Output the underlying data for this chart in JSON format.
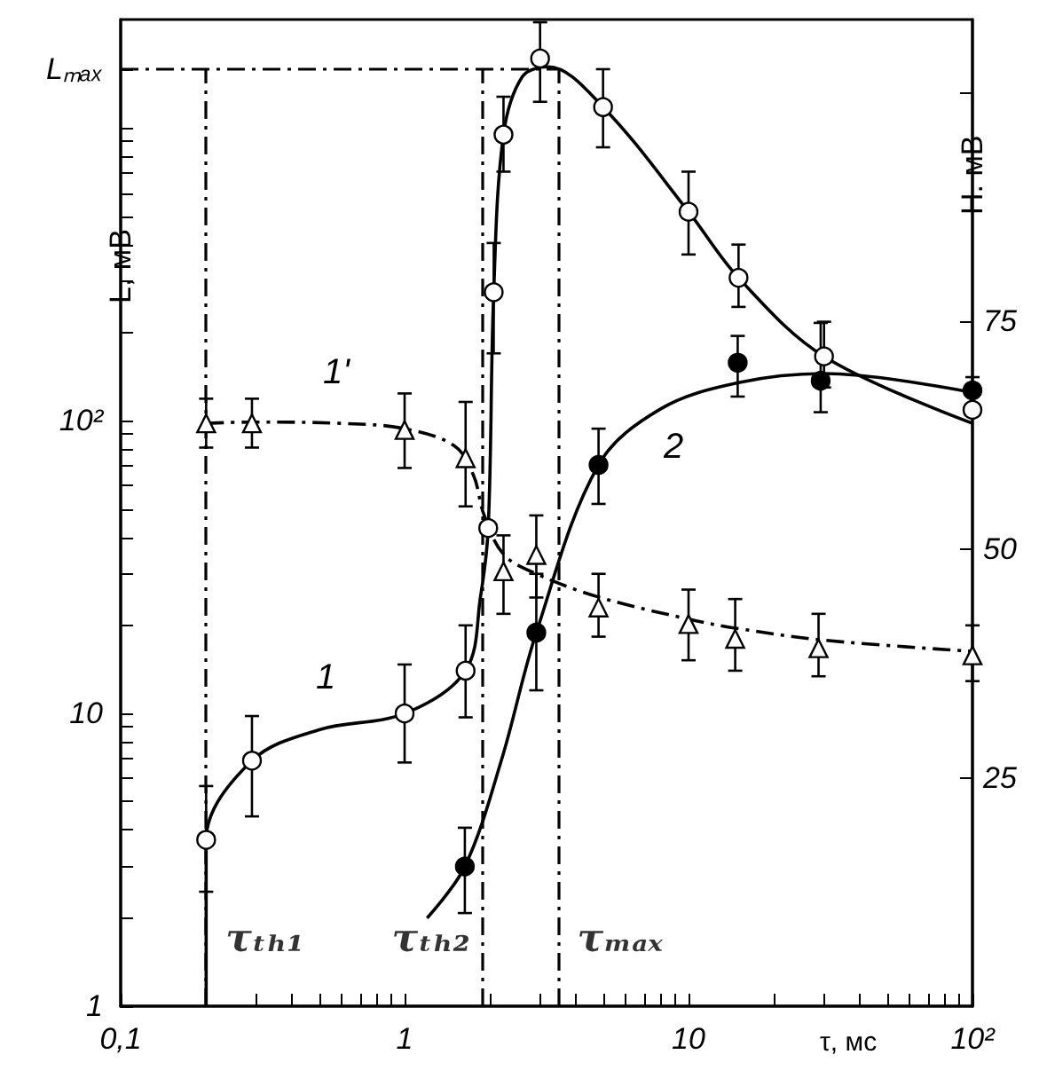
{
  "chart_data": {
    "type": "scatter",
    "xlabel": "τ, мс",
    "ylabel": "L, мВ",
    "y2label": "H. мВ",
    "log": "xy",
    "xlim": [
      0.1,
      100
    ],
    "ylim": [
      1,
      2350
    ],
    "y2lim": [
      0,
      108
    ],
    "xticks": [
      {
        "value": 0.1,
        "label": "0,1"
      },
      {
        "value": 0.2,
        "label": null
      },
      {
        "value": 0.3,
        "label": null
      },
      {
        "value": 0.4,
        "label": null
      },
      {
        "value": 0.5,
        "label": null
      },
      {
        "value": 0.6,
        "label": null
      },
      {
        "value": 0.7,
        "label": null
      },
      {
        "value": 0.8,
        "label": null
      },
      {
        "value": 0.9,
        "label": null
      },
      1,
      {
        "value": 2,
        "label": null
      },
      {
        "value": 3,
        "label": null
      },
      {
        "value": 4,
        "label": null
      },
      {
        "value": 5,
        "label": null
      },
      {
        "value": 6,
        "label": null
      },
      {
        "value": 7,
        "label": null
      },
      {
        "value": 8,
        "label": null
      },
      {
        "value": 9,
        "label": null
      },
      10,
      {
        "value": 20,
        "label": null
      },
      {
        "value": 30,
        "label": null
      },
      {
        "value": 40,
        "label": null
      },
      {
        "value": 50,
        "label": null
      },
      {
        "value": 60,
        "label": null
      },
      {
        "value": 70,
        "label": null
      },
      {
        "value": 80,
        "label": null
      },
      {
        "value": 90,
        "label": null
      },
      {
        "value": 100,
        "label": "10²"
      }
    ],
    "yticks": [
      1,
      {
        "value": 2,
        "label": null
      },
      {
        "value": 3,
        "label": null
      },
      {
        "value": 4,
        "label": null
      },
      {
        "value": 5,
        "label": null
      },
      {
        "value": 6,
        "label": null
      },
      {
        "value": 7,
        "label": null
      },
      {
        "value": 8,
        "label": null
      },
      {
        "value": 9,
        "label": null
      },
      10,
      {
        "value": 20,
        "label": null
      },
      {
        "value": 30,
        "label": null
      },
      {
        "value": 40,
        "label": null
      },
      {
        "value": 50,
        "label": null
      },
      {
        "value": 60,
        "label": null
      },
      {
        "value": 70,
        "label": null
      },
      {
        "value": 80,
        "label": null
      },
      {
        "value": 90,
        "label": null
      },
      {
        "value": 100,
        "label": "10²"
      },
      {
        "value": 200,
        "label": null
      },
      {
        "value": 300,
        "label": null
      },
      {
        "value": 400,
        "label": null
      },
      {
        "value": 500,
        "label": null
      },
      {
        "value": 600,
        "label": null
      },
      {
        "value": 700,
        "label": null
      },
      {
        "value": 800,
        "label": null
      },
      {
        "value": 900,
        "label": null
      },
      {
        "value": 1000,
        "label": null
      },
      {
        "value": 1585,
        "label": "Lₘₐₓ"
      }
    ],
    "y2ticks": [
      25,
      50,
      75,
      {
        "value": 100,
        "label": null
      }
    ],
    "grid": false,
    "ref_lines": [
      {
        "axis": "x",
        "value": 0.2,
        "label": "τₜₕ₁",
        "line_style": "dashed",
        "color": "#000000"
      },
      {
        "axis": "x",
        "value": 1.88,
        "label": "τₜₕ₂",
        "line_style": "dashed",
        "color": "#000000"
      },
      {
        "axis": "x",
        "value": 3.46,
        "label": "τₘₐₓ",
        "line_style": "dashed",
        "color": "#000000"
      },
      {
        "axis": "y",
        "value": 1585,
        "line_style": "dashed",
        "color": "#000000"
      }
    ],
    "annotations": [
      "1",
      "1'",
      "2"
    ],
    "series": [
      {
        "marker": "circle",
        "color": "#ffffff",
        "x": [
          0.2,
          0.29,
          1.0,
          1.64,
          1.97,
          2.06,
          2.23,
          3.0,
          5.0,
          10,
          15,
          30,
          100
        ],
        "values": [
          3.7,
          6.9,
          10,
          14,
          43,
          275,
          950,
          1730,
          1180,
          518,
          308,
          166,
          109
        ],
        "errors": [
          [
            2.46,
            5.65
          ],
          [
            4.45,
            9.8
          ],
          [
            6.8,
            14.7
          ],
          [
            9.7,
            20
          ],
          null,
          [
            170,
            405
          ],
          [
            710,
            1280
          ],
          [
            1230,
            2300
          ],
          [
            860,
            1590
          ],
          [
            370,
            710
          ],
          [
            245,
            400
          ],
          [
            130,
            218
          ],
          null
        ]
      },
      {
        "type": "line",
        "marker": "none",
        "line_style": "solid",
        "color": "#000000",
        "x": [
          0.2,
          0.2,
          0.29,
          0.5,
          1.0,
          1.64,
          1.85,
          1.97,
          2.06,
          2.23,
          2.6,
          3.2,
          5.0,
          10,
          15,
          30,
          100
        ],
        "values": [
          1,
          3.7,
          6.9,
          8.8,
          10,
          14,
          25,
          43,
          275,
          950,
          1500,
          1620,
          1180,
          518,
          308,
          166,
          98
        ]
      },
      {
        "marker": "circle",
        "color": "#000000",
        "x": [
          1.63,
          2.91,
          4.82,
          14.9,
          29.2,
          100
        ],
        "values": [
          3,
          18.9,
          70.7,
          158,
          137,
          127
        ],
        "errors": [
          [
            2.08,
            4.07
          ],
          [
            12,
            30
          ],
          [
            52,
            94
          ],
          [
            121,
            195
          ],
          [
            107,
            216
          ],
          [
            114,
            141
          ]
        ]
      },
      {
        "type": "line",
        "marker": "none",
        "line_style": "solid",
        "color": "#000000",
        "x": [
          1.2,
          1.63,
          2.2,
          2.91,
          4.82,
          8,
          15,
          30,
          100
        ],
        "values": [
          2.0,
          3,
          7,
          18.9,
          70.7,
          110,
          135,
          145,
          125
        ]
      },
      {
        "marker": "triangle",
        "color": "#ffffff",
        "x": [
          0.2,
          0.29,
          1.0,
          1.64,
          2.23,
          2.91,
          4.82,
          10,
          14.6,
          28.7,
          100
        ],
        "values": [
          98,
          98,
          93,
          74.5,
          30.6,
          34.8,
          23,
          20.2,
          18,
          16.7,
          15.8
        ],
        "errors": [
          [
            81,
            119
          ],
          [
            81,
            119
          ],
          [
            69,
            124
          ],
          [
            51,
            116
          ],
          [
            21.9,
            40.6
          ],
          [
            24.9,
            47.5
          ],
          [
            18.3,
            30
          ],
          [
            15.2,
            26.5
          ],
          [
            14,
            24.6
          ],
          [
            13.4,
            21.9
          ],
          [
            12.9,
            20
          ]
        ]
      },
      {
        "type": "line",
        "marker": "none",
        "line_style": "dashed",
        "color": "#000000",
        "x": [
          0.2,
          0.29,
          0.6,
          1.0,
          1.5,
          1.75,
          1.9,
          2.23,
          2.91,
          4.82,
          10,
          15,
          30,
          100
        ],
        "values": [
          98,
          99,
          98,
          94,
          82,
          65,
          48,
          35,
          30,
          25,
          21,
          19.5,
          17.8,
          16.3
        ]
      }
    ]
  }
}
